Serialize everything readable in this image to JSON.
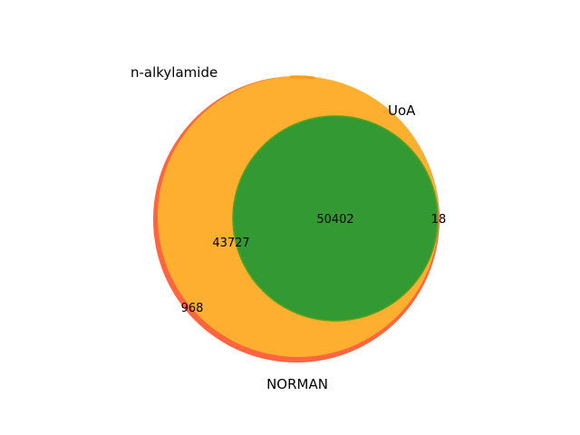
{
  "sets": {
    "a": {
      "label": "n-alkylamide",
      "color": "#ff3030"
    },
    "b": {
      "label": "NORMAN",
      "color": "#ffb22e"
    },
    "c": {
      "label": "UoA",
      "color": "#2e962e"
    }
  },
  "regions": {
    "a_outer": "968",
    "a_and_b": "43727",
    "a_b_c": "50402",
    "b_and_c": "18"
  }
}
